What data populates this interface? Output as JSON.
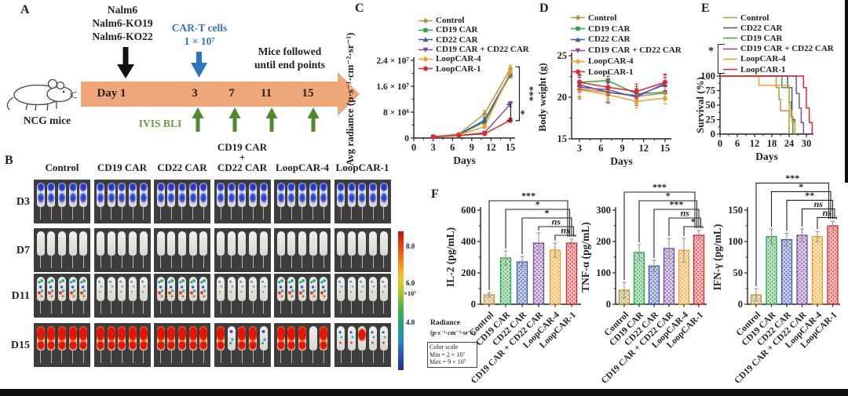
{
  "figure": {
    "panels": {
      "a": "A",
      "b": "B",
      "c": "C",
      "d": "D",
      "e": "E",
      "f": "F"
    }
  },
  "series_colors": {
    "control": "#b3953f",
    "cd19": "#2ea44a",
    "cd22": "#3c58a8",
    "combo": "#7e4fa0",
    "loop4": "#f59d22",
    "loop1": "#e42629"
  },
  "panel_a": {
    "tumor_lines": [
      "Nalm6",
      "Nalm6-KO19",
      "Nalm6-KO22"
    ],
    "cart_line1": "CAR-T cells",
    "cart_line2": "1 × 10⁷",
    "followup_line1": "Mice followed",
    "followup_line2": "until end points",
    "timeline": [
      "Day 1",
      "3",
      "7",
      "11",
      "15"
    ],
    "mice_label": "NCG mice",
    "ivis_label": "IVIS BLI",
    "colors": {
      "timeline_arrow": "#efa678",
      "cart_blue": "#2e74c0",
      "ivis_text": "#6f9c3f",
      "ivis_arrow": "#4d8b2e"
    }
  },
  "panel_b": {
    "columns": [
      {
        "lines": [
          "Control"
        ]
      },
      {
        "lines": [
          "CD19 CAR"
        ]
      },
      {
        "lines": [
          "CD22 CAR"
        ]
      },
      {
        "lines": [
          "CD19 CAR",
          "+",
          "CD22 CAR"
        ]
      },
      {
        "lines": [
          "LoopCAR-4"
        ]
      },
      {
        "lines": [
          "LoopCAR-1"
        ]
      }
    ],
    "rows": [
      "D3",
      "D7",
      "D11",
      "D15"
    ],
    "mice_per_cell": 5,
    "signals": [
      [
        "blue",
        "blue",
        "blue",
        "blue",
        "blue",
        "blue"
      ],
      [
        "none",
        "none",
        "none",
        "none",
        "none",
        "none"
      ],
      [
        "spots",
        "faintspots",
        "spots",
        "faintspots",
        "spots",
        "faintspots"
      ],
      [
        "red",
        "red",
        "red",
        "redmix",
        "redgap",
        "lowmix"
      ]
    ]
  },
  "colorbar": {
    "tick_top": "8.0",
    "tick_mid": "6.0",
    "tick_bottom": "4.0",
    "multiplier": "×10⁷",
    "radiance_line1": "Radiance",
    "radiance_line2": "(p·s⁻¹·cm⁻²·sr⁻¹)",
    "box_title": "Color scale",
    "box_min": "Min = 2 × 10⁷",
    "box_max": "Max = 9 × 10⁷"
  },
  "chart_data": [
    {
      "id": "c",
      "type": "line",
      "panel": "C",
      "ylabel": "Avg radiance (p·s⁻¹·cm⁻²·sr⁻¹)",
      "xlabel": "Days",
      "x": [
        3,
        7,
        11,
        15
      ],
      "xticks": [
        0,
        3,
        6,
        9,
        12,
        15
      ],
      "yticks": [
        {
          "v": 0,
          "label": "0"
        },
        {
          "v": 8000000,
          "label": "8 × 10⁶"
        },
        {
          "v": 16000000,
          "label": "1.6 × 10⁷"
        },
        {
          "v": 24000000,
          "label": "2.4 × 10⁷"
        }
      ],
      "ylim": [
        0,
        24000000
      ],
      "series": [
        {
          "name": "Control",
          "color": "control",
          "marker": "diamond",
          "values": [
            400000,
            1200000,
            7500000,
            21500000
          ],
          "err": [
            150000,
            300000,
            1000000,
            1000000
          ]
        },
        {
          "name": "CD19 CAR",
          "color": "cd19",
          "marker": "square",
          "values": [
            400000,
            1000000,
            5000000,
            19500000
          ],
          "err": [
            150000,
            250000,
            800000,
            1000000
          ]
        },
        {
          "name": "CD22 CAR",
          "color": "cd22",
          "marker": "triangle",
          "values": [
            400000,
            1100000,
            5500000,
            20000000
          ],
          "err": [
            150000,
            250000,
            800000,
            900000
          ]
        },
        {
          "name": "CD19 CAR + CD22 CAR",
          "color": "combo",
          "marker": "triangle-down",
          "values": [
            350000,
            800000,
            1600000,
            10500000
          ],
          "err": [
            120000,
            200000,
            400000,
            800000
          ]
        },
        {
          "name": "LoopCAR-4",
          "color": "loop4",
          "marker": "diamond",
          "values": [
            400000,
            1000000,
            3500000,
            20500000
          ],
          "err": [
            150000,
            250000,
            600000,
            900000
          ]
        },
        {
          "name": "LoopCAR-1",
          "color": "loop1",
          "marker": "circle",
          "values": [
            350000,
            800000,
            1300000,
            5500000
          ],
          "err": [
            120000,
            200000,
            350000,
            700000
          ]
        }
      ],
      "sig": [
        {
          "x": 16.4,
          "y1": 22000000,
          "y2": 5400000,
          "label": "***"
        },
        {
          "x": 15.05,
          "y1": 10400000,
          "y2": 5400000,
          "label": "*"
        }
      ]
    },
    {
      "id": "d",
      "type": "line",
      "panel": "D",
      "ylabel": "Body weight (g)",
      "xlabel": "Days",
      "x": [
        3,
        7,
        11,
        15
      ],
      "xticks": [
        3,
        6,
        9,
        12,
        15
      ],
      "yticks": [
        {
          "v": 15,
          "label": "15"
        },
        {
          "v": 20,
          "label": "20"
        },
        {
          "v": 25,
          "label": "25"
        }
      ],
      "ylim": [
        15,
        25
      ],
      "series": [
        {
          "name": "Control",
          "color": "control",
          "marker": "diamond",
          "values": [
            21.0,
            20.6,
            20.1,
            20.5
          ],
          "err": [
            0.9,
            0.8,
            0.9,
            0.8
          ]
        },
        {
          "name": "CD19 CAR",
          "color": "cd19",
          "marker": "square",
          "values": [
            21.8,
            22.0,
            20.4,
            20.6
          ],
          "err": [
            1.0,
            0.9,
            0.9,
            0.9
          ]
        },
        {
          "name": "CD22 CAR",
          "color": "cd22",
          "marker": "triangle",
          "values": [
            21.5,
            20.6,
            20.2,
            21.5
          ],
          "err": [
            0.9,
            1.1,
            0.8,
            0.9
          ]
        },
        {
          "name": "CD19 CAR + CD22 CAR",
          "color": "combo",
          "marker": "triangle-down",
          "values": [
            21.2,
            20.9,
            20.0,
            21.7
          ],
          "err": [
            1.4,
            1.6,
            1.0,
            1.0
          ]
        },
        {
          "name": "LoopCAR-4",
          "color": "loop4",
          "marker": "diamond",
          "values": [
            20.9,
            20.3,
            19.5,
            19.9
          ],
          "err": [
            0.9,
            0.9,
            0.8,
            0.7
          ]
        },
        {
          "name": "LoopCAR-1",
          "color": "loop1",
          "marker": "circle",
          "values": [
            21.8,
            21.2,
            20.7,
            21.8
          ],
          "err": [
            0.9,
            1.0,
            0.9,
            1.0
          ]
        }
      ],
      "sig": []
    },
    {
      "id": "e",
      "type": "step",
      "panel": "E",
      "ylabel": "Survival (%)",
      "xlabel": "Days",
      "xticks": [
        0,
        6,
        12,
        18,
        24,
        30
      ],
      "yticks": [
        {
          "v": 0,
          "label": "0"
        },
        {
          "v": 25,
          "label": "25"
        },
        {
          "v": 50,
          "label": "50"
        },
        {
          "v": 75,
          "label": "75"
        },
        {
          "v": 100,
          "label": "100"
        }
      ],
      "ylim": [
        0,
        100
      ],
      "legend_sig": "*",
      "series": [
        {
          "name": "Control",
          "color": "control",
          "points": [
            [
              0,
              100
            ],
            [
              19.5,
              100
            ],
            [
              19.5,
              80
            ],
            [
              20.5,
              80
            ],
            [
              20.5,
              60
            ],
            [
              21,
              60
            ],
            [
              21,
              40
            ],
            [
              24,
              40
            ],
            [
              24,
              0
            ]
          ]
        },
        {
          "name": "CD22 CAR",
          "color": "cd22",
          "points": [
            [
              0,
              100
            ],
            [
              23.5,
              100
            ],
            [
              23.5,
              80
            ],
            [
              25,
              80
            ],
            [
              25,
              25
            ],
            [
              26,
              25
            ],
            [
              26,
              0
            ]
          ]
        },
        {
          "name": "CD19 CAR",
          "color": "cd19",
          "points": [
            [
              0,
              100
            ],
            [
              21.5,
              100
            ],
            [
              21.5,
              80
            ],
            [
              24,
              80
            ],
            [
              24,
              55
            ],
            [
              24.7,
              55
            ],
            [
              24.7,
              30
            ],
            [
              25.3,
              30
            ],
            [
              25.3,
              0
            ]
          ]
        },
        {
          "name": "CD19 CAR + CD22 CAR",
          "color": "combo",
          "points": [
            [
              0,
              100
            ],
            [
              26.5,
              100
            ],
            [
              26.5,
              70
            ],
            [
              27.5,
              70
            ],
            [
              27.5,
              45
            ],
            [
              28.2,
              45
            ],
            [
              28.2,
              20
            ],
            [
              29,
              20
            ],
            [
              29,
              0
            ]
          ]
        },
        {
          "name": "LoopCAR-4",
          "color": "loop4",
          "points": [
            [
              0,
              100
            ],
            [
              13.5,
              100
            ],
            [
              13.5,
              84
            ],
            [
              24,
              84
            ],
            [
              24,
              40
            ],
            [
              25,
              40
            ],
            [
              25,
              20
            ],
            [
              26,
              20
            ],
            [
              26,
              0
            ]
          ]
        },
        {
          "name": "LoopCAR-1",
          "color": "loop1",
          "points": [
            [
              0,
              100
            ],
            [
              29,
              100
            ],
            [
              29,
              80
            ],
            [
              30,
              80
            ],
            [
              30,
              45
            ],
            [
              31,
              45
            ],
            [
              31,
              20
            ],
            [
              32,
              20
            ],
            [
              32,
              0
            ]
          ]
        }
      ]
    },
    {
      "id": "il2",
      "type": "bar",
      "panel": "F",
      "ylabel": "IL-2 (pg/mL)",
      "categories": [
        "Control",
        "CD19 CAR",
        "CD22 CAR",
        "CD19 CAR + CD22 CAR",
        "LoopCAR-4",
        "LoopCAR-1"
      ],
      "colors": [
        "control",
        "cd19",
        "cd22",
        "combo",
        "loop4",
        "loop1"
      ],
      "values": [
        60,
        295,
        270,
        390,
        345,
        390
      ],
      "errors": [
        15,
        45,
        35,
        65,
        45,
        25
      ],
      "yticks": [
        0,
        200,
        400,
        600
      ],
      "ylim": [
        0,
        600
      ],
      "sig": [
        {
          "from": 0,
          "to": 5,
          "label": "***"
        },
        {
          "from": 1,
          "to": 5,
          "label": "*"
        },
        {
          "from": 2,
          "to": 5,
          "label": "*"
        },
        {
          "from": 3,
          "to": 5,
          "label": "ns"
        },
        {
          "from": 4,
          "to": 5,
          "label": "ns"
        }
      ]
    },
    {
      "id": "tnf",
      "type": "bar",
      "panel": "F",
      "ylabel": "TNF-α (pg/mL)",
      "categories": [
        "Control",
        "CD19 CAR",
        "CD22 CAR",
        "CD19 CAR + CD22 CAR",
        "LoopCAR-4",
        "LoopCAR-1"
      ],
      "colors": [
        "control",
        "cd19",
        "cd22",
        "combo",
        "loop4",
        "loop1"
      ],
      "values": [
        45,
        165,
        122,
        178,
        172,
        220
      ],
      "errors": [
        25,
        25,
        18,
        32,
        38,
        15
      ],
      "yticks": [
        0,
        100,
        200,
        300
      ],
      "ylim": [
        0,
        300
      ],
      "sig": [
        {
          "from": 0,
          "to": 5,
          "label": "***"
        },
        {
          "from": 1,
          "to": 5,
          "label": "*"
        },
        {
          "from": 2,
          "to": 5,
          "label": "***"
        },
        {
          "from": 3,
          "to": 5,
          "label": "ns"
        },
        {
          "from": 4,
          "to": 5,
          "label": "*"
        }
      ]
    },
    {
      "id": "ifn",
      "type": "bar",
      "panel": "F",
      "ylabel": "IFN-γ (pg/mL)",
      "categories": [
        "Control",
        "CD19 CAR",
        "CD22 CAR",
        "CD19 CAR + CD22 CAR",
        "LoopCAR-4",
        "LoopCAR-1"
      ],
      "colors": [
        "control",
        "cd19",
        "cd22",
        "combo",
        "loop4",
        "loop1"
      ],
      "values": [
        15,
        108,
        103,
        110,
        108,
        125
      ],
      "errors": [
        10,
        12,
        10,
        10,
        8,
        7
      ],
      "yticks": [
        0,
        50,
        100,
        150
      ],
      "ylim": [
        0,
        150
      ],
      "sig": [
        {
          "from": 0,
          "to": 5,
          "label": "***"
        },
        {
          "from": 1,
          "to": 5,
          "label": "*"
        },
        {
          "from": 2,
          "to": 5,
          "label": "**"
        },
        {
          "from": 3,
          "to": 5,
          "label": "ns"
        },
        {
          "from": 4,
          "to": 5,
          "label": "ns"
        }
      ]
    }
  ]
}
